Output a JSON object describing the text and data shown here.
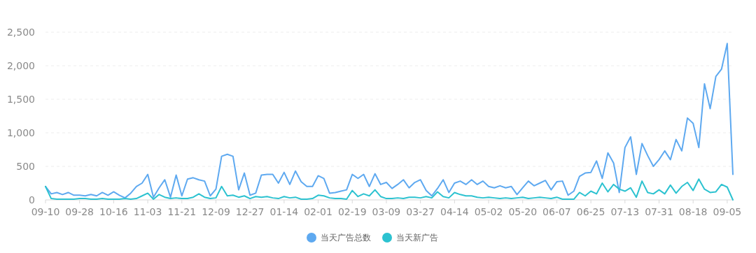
{
  "chart_data": {
    "type": "line",
    "categories": [
      "09-10",
      null,
      null,
      null,
      null,
      null,
      "09-28",
      null,
      null,
      null,
      null,
      null,
      "10-16",
      null,
      null,
      null,
      null,
      null,
      "11-03",
      null,
      null,
      null,
      null,
      null,
      "11-21",
      null,
      null,
      null,
      null,
      null,
      "12-09",
      null,
      null,
      null,
      null,
      null,
      "12-27",
      null,
      null,
      null,
      null,
      null,
      "01-14",
      null,
      null,
      null,
      null,
      null,
      "02-01",
      null,
      null,
      null,
      null,
      null,
      "02-19",
      null,
      null,
      null,
      null,
      null,
      "03-09",
      null,
      null,
      null,
      null,
      null,
      "03-27",
      null,
      null,
      null,
      null,
      null,
      "04-14",
      null,
      null,
      null,
      null,
      null,
      "05-02",
      null,
      null,
      null,
      null,
      null,
      "05-20",
      null,
      null,
      null,
      null,
      null,
      "06-07",
      null,
      null,
      null,
      null,
      null,
      "06-25",
      null,
      null,
      null,
      null,
      null,
      "07-13",
      null,
      null,
      null,
      null,
      null,
      "07-31",
      null,
      null,
      null,
      null,
      null,
      "08-18",
      null,
      null,
      null,
      null,
      null,
      "09-05",
      null
    ],
    "series": [
      {
        "name": "当天广告总数",
        "color": "#5ea9f0",
        "values": [
          200,
          90,
          110,
          80,
          110,
          70,
          70,
          60,
          80,
          60,
          110,
          70,
          120,
          70,
          30,
          100,
          200,
          250,
          380,
          40,
          180,
          300,
          40,
          370,
          60,
          310,
          330,
          300,
          280,
          60,
          160,
          650,
          680,
          650,
          150,
          400,
          70,
          100,
          370,
          380,
          380,
          250,
          410,
          230,
          430,
          270,
          200,
          200,
          360,
          320,
          100,
          110,
          130,
          150,
          380,
          320,
          380,
          200,
          390,
          230,
          260,
          170,
          230,
          300,
          180,
          260,
          300,
          140,
          60,
          170,
          300,
          110,
          250,
          280,
          230,
          300,
          230,
          280,
          200,
          180,
          210,
          180,
          200,
          80,
          180,
          280,
          210,
          250,
          290,
          150,
          270,
          280,
          70,
          130,
          350,
          400,
          410,
          580,
          320,
          700,
          550,
          110,
          780,
          940,
          380,
          840,
          660,
          500,
          600,
          730,
          600,
          900,
          730,
          1220,
          1140,
          780,
          1730,
          1360,
          1840,
          1950,
          2330,
          380
        ]
      },
      {
        "name": "当天新广告",
        "color": "#2cc2d0",
        "values": [
          200,
          20,
          10,
          10,
          10,
          10,
          20,
          20,
          10,
          10,
          20,
          10,
          10,
          10,
          20,
          10,
          20,
          60,
          100,
          10,
          80,
          40,
          20,
          30,
          20,
          20,
          40,
          90,
          40,
          20,
          30,
          200,
          60,
          70,
          40,
          60,
          20,
          50,
          40,
          50,
          30,
          20,
          50,
          30,
          40,
          10,
          10,
          20,
          70,
          60,
          30,
          20,
          20,
          10,
          140,
          50,
          90,
          60,
          150,
          50,
          20,
          20,
          30,
          20,
          40,
          40,
          30,
          50,
          30,
          120,
          50,
          30,
          110,
          80,
          60,
          60,
          40,
          30,
          40,
          30,
          20,
          30,
          20,
          30,
          40,
          20,
          30,
          40,
          30,
          20,
          40,
          10,
          10,
          10,
          110,
          60,
          130,
          90,
          250,
          120,
          230,
          160,
          130,
          180,
          40,
          280,
          110,
          90,
          150,
          90,
          220,
          100,
          200,
          260,
          140,
          310,
          160,
          110,
          120,
          230,
          190,
          0
        ]
      }
    ],
    "ylim": [
      0,
      2500
    ],
    "yticks": [
      0,
      {
        "value": 500,
        "label": "500"
      },
      {
        "value": 1000,
        "label": "1,000"
      },
      {
        "value": 1500,
        "label": "1,500"
      },
      {
        "value": 2000,
        "label": "2,000"
      },
      {
        "value": 2500,
        "label": "2,500"
      }
    ],
    "grid": "y",
    "legend": "bottom",
    "marker": "none",
    "line_style": "solid"
  }
}
